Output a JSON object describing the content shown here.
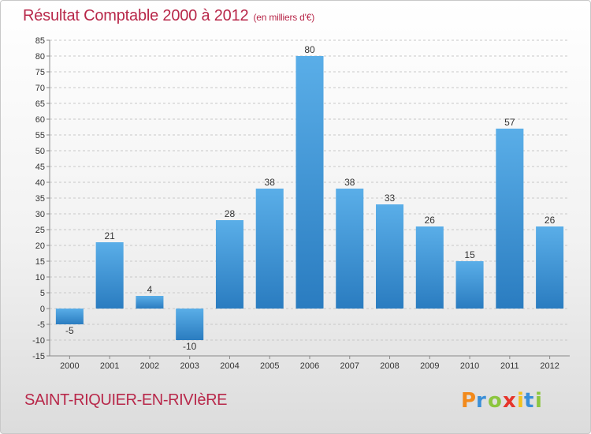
{
  "header": {
    "title": "Résultat Comptable 2000 à 2012",
    "subtitle": "(en milliers d'€)"
  },
  "footer": {
    "commune": "SAINT-RIQUIER-EN-RIVIèRE",
    "logo_text": "Proxiti"
  },
  "colors": {
    "accent": "#b8284a",
    "bar_light": "#5aaee8",
    "bar_dark": "#2a7cc0",
    "grid": "#c8c8c8"
  },
  "chart_data": {
    "type": "bar",
    "categories": [
      "2000",
      "2001",
      "2002",
      "2003",
      "2004",
      "2005",
      "2006",
      "2007",
      "2008",
      "2009",
      "2010",
      "2011",
      "2012"
    ],
    "values": [
      -5,
      21,
      4,
      -10,
      28,
      38,
      80,
      38,
      33,
      26,
      15,
      57,
      26
    ],
    "ylim": [
      -15,
      85
    ],
    "ytick_step": 5,
    "grid": "horizontal dashed"
  }
}
